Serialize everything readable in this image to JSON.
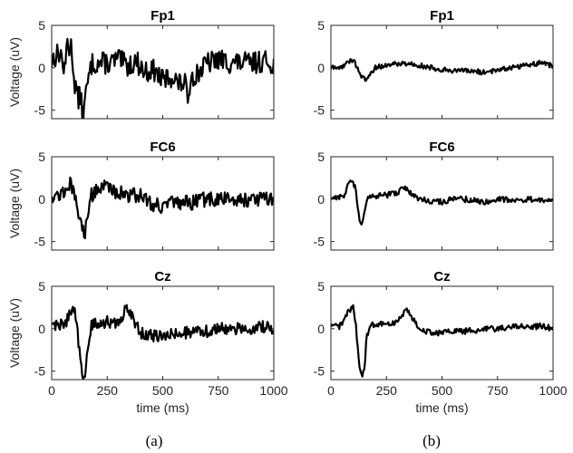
{
  "chart_data": [
    {
      "type": "line",
      "panel": "a",
      "title": "Fp1",
      "ylabel": "Voltage (uV)",
      "xlabel": "",
      "xlim": [
        0,
        1000
      ],
      "ylim": [
        -6,
        5
      ],
      "yticks": [
        "5",
        "0",
        "-5"
      ],
      "series": [
        {
          "x": [
            0,
            20,
            40,
            60,
            70,
            80,
            90,
            100,
            110,
            120,
            130,
            140,
            150,
            160,
            170,
            180,
            200,
            230,
            260,
            300,
            340,
            380,
            420,
            460,
            500,
            540,
            580,
            600,
            610,
            620,
            630,
            650,
            700,
            750,
            800,
            850,
            900,
            950,
            1000
          ],
          "y": [
            0.8,
            1.5,
            1.8,
            -0.8,
            3.5,
            2.2,
            2.5,
            -1.2,
            -2.5,
            -4,
            -3,
            -6,
            -4,
            -2,
            -1,
            0.5,
            0.5,
            0.6,
            0.5,
            1,
            0.2,
            0.8,
            -0.5,
            -0.3,
            -1.5,
            -1,
            -2,
            -1.5,
            -4,
            -2,
            -1,
            -0.8,
            0.5,
            1,
            0.6,
            0.6,
            0.5,
            0.8,
            0.5
          ],
          "noise": 1.3
        }
      ]
    },
    {
      "type": "line",
      "panel": "b",
      "title": "Fp1",
      "ylabel": "",
      "xlabel": "",
      "xlim": [
        0,
        1000
      ],
      "ylim": [
        -6,
        5
      ],
      "yticks": [
        "5",
        "0",
        "-5"
      ],
      "series": [
        {
          "x": [
            0,
            40,
            70,
            100,
            120,
            140,
            160,
            180,
            200,
            250,
            300,
            350,
            400,
            450,
            500,
            550,
            600,
            650,
            700,
            750,
            800,
            850,
            900,
            950,
            1000
          ],
          "y": [
            0,
            0,
            0.5,
            1,
            0,
            -1.2,
            -1.5,
            -0.5,
            0,
            0.3,
            0.5,
            0.5,
            0.3,
            0,
            -0.2,
            -0.3,
            -0.4,
            -0.4,
            -0.6,
            -0.2,
            0,
            0.2,
            0.4,
            0.6,
            0.2
          ],
          "noise": 0.3
        }
      ]
    },
    {
      "type": "line",
      "panel": "a",
      "title": "FC6",
      "ylabel": "Voltage (uV)",
      "xlabel": "",
      "xlim": [
        0,
        1000
      ],
      "ylim": [
        -6,
        5
      ],
      "yticks": [
        "5",
        "0",
        "-5"
      ],
      "series": [
        {
          "x": [
            0,
            40,
            60,
            80,
            100,
            120,
            130,
            140,
            150,
            160,
            180,
            200,
            250,
            300,
            350,
            400,
            450,
            500,
            550,
            600,
            650,
            700,
            750,
            800,
            850,
            900,
            950,
            1000
          ],
          "y": [
            0.5,
            0.5,
            1,
            2,
            0.5,
            -1.5,
            -3,
            -3.5,
            -4,
            -1.5,
            0.5,
            1.2,
            1.5,
            0.8,
            0.5,
            0.5,
            -0.5,
            -0.8,
            -0.5,
            -0.5,
            -0.3,
            0,
            0,
            0,
            0,
            0,
            0,
            0
          ],
          "noise": 0.9
        }
      ]
    },
    {
      "type": "line",
      "panel": "b",
      "title": "FC6",
      "ylabel": "",
      "xlabel": "",
      "xlim": [
        0,
        1000
      ],
      "ylim": [
        -6,
        5
      ],
      "yticks": [
        "5",
        "0",
        "-5"
      ],
      "series": [
        {
          "x": [
            0,
            60,
            70,
            80,
            90,
            100,
            110,
            120,
            130,
            140,
            150,
            160,
            180,
            200,
            250,
            300,
            330,
            350,
            400,
            450,
            500,
            550,
            600,
            650,
            700,
            750,
            800,
            850,
            900,
            950,
            1000
          ],
          "y": [
            0.2,
            0.3,
            1.2,
            2,
            1.8,
            2,
            1.2,
            -1,
            -2.5,
            -3,
            -1.5,
            0,
            0.2,
            0.3,
            0.5,
            0.8,
            1.5,
            0.8,
            0,
            -0.2,
            -0.3,
            0,
            0,
            -0.2,
            -0.3,
            0,
            0,
            -0.2,
            0,
            -0.2,
            -0.3
          ],
          "noise": 0.35
        }
      ]
    },
    {
      "type": "line",
      "panel": "a",
      "title": "Cz",
      "ylabel": "Voltage (uV)",
      "xlabel": "time (ms)",
      "xlim": [
        0,
        1000
      ],
      "ylim": [
        -6,
        5
      ],
      "yticks": [
        "5",
        "0",
        "-5"
      ],
      "xticks": [
        "0",
        "250",
        "500",
        "750",
        "1000"
      ],
      "series": [
        {
          "x": [
            0,
            40,
            70,
            90,
            100,
            110,
            120,
            130,
            140,
            150,
            160,
            180,
            200,
            250,
            300,
            330,
            340,
            360,
            400,
            450,
            500,
            550,
            600,
            650,
            700,
            750,
            800,
            850,
            900,
            950,
            1000
          ],
          "y": [
            0.5,
            0.5,
            1,
            2.5,
            2.3,
            1.5,
            -1.5,
            -4,
            -5.8,
            -5.8,
            -3,
            0.5,
            0.5,
            0.8,
            0.5,
            2.2,
            2.5,
            1.5,
            -0.5,
            -0.8,
            -1,
            -0.5,
            -0.5,
            -0.3,
            -0.3,
            0,
            0,
            0,
            0,
            0.2,
            0
          ],
          "noise": 0.7
        }
      ]
    },
    {
      "type": "line",
      "panel": "b",
      "title": "Cz",
      "ylabel": "",
      "xlabel": "time (ms)",
      "xlim": [
        0,
        1000
      ],
      "ylim": [
        -6,
        5
      ],
      "yticks": [
        "5",
        "0",
        "-5"
      ],
      "xticks": [
        "0",
        "250",
        "500",
        "750",
        "1000"
      ],
      "series": [
        {
          "x": [
            0,
            40,
            70,
            80,
            90,
            100,
            110,
            120,
            130,
            140,
            150,
            160,
            180,
            200,
            250,
            300,
            330,
            340,
            360,
            400,
            450,
            500,
            550,
            600,
            650,
            700,
            750,
            800,
            850,
            900,
            950,
            1000
          ],
          "y": [
            0.2,
            0.3,
            1.5,
            2.5,
            2.2,
            2.5,
            1,
            -2,
            -4.5,
            -5.5,
            -5,
            -1,
            0.5,
            0.5,
            0.5,
            0.8,
            2,
            2.5,
            1.5,
            0,
            -0.5,
            -0.5,
            -0.3,
            -0.3,
            -0.2,
            0,
            0,
            0.2,
            0.3,
            0.2,
            0.3,
            0
          ],
          "noise": 0.35
        }
      ]
    }
  ],
  "captions": [
    "(a)",
    "(b)"
  ]
}
